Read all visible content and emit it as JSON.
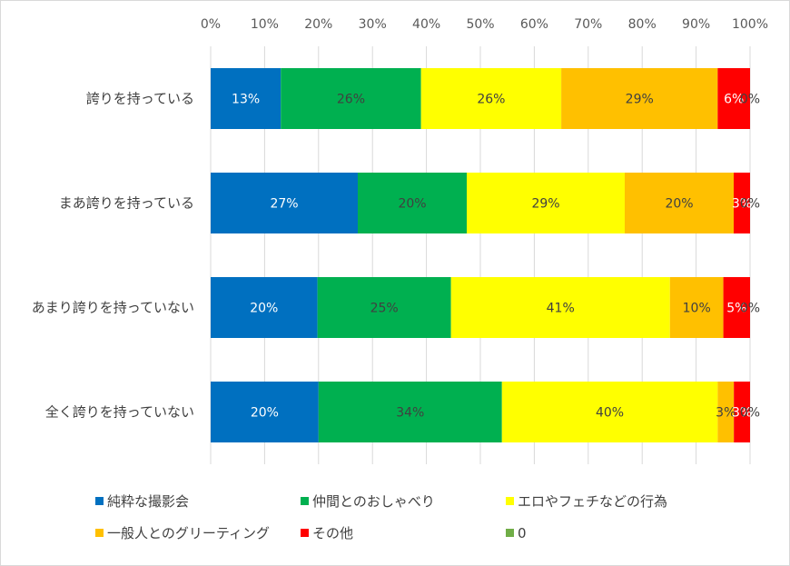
{
  "chart_data": {
    "type": "bar",
    "orientation": "horizontal",
    "stacked": "percent",
    "categories": [
      "誇りを持っている",
      "まあ誇りを持っている",
      "あまり誇りを持っていない",
      "全く誇りを持っていない"
    ],
    "series": [
      {
        "name": "純粋な撮影会",
        "color": "#0070C0",
        "values": [
          13,
          27,
          20,
          20
        ],
        "labels": [
          "13%",
          "27%",
          "20%",
          "20%"
        ],
        "label_color": "#ffffff"
      },
      {
        "name": "仲間とのおしゃべり",
        "color": "#00B050",
        "values": [
          26,
          20,
          25,
          34
        ],
        "labels": [
          "26%",
          "20%",
          "25%",
          "34%"
        ],
        "label_color": "#404040"
      },
      {
        "name": "エロやフェチなどの行為",
        "color": "#FFFF00",
        "values": [
          26,
          29,
          41,
          40
        ],
        "labels": [
          "26%",
          "29%",
          "41%",
          "40%"
        ],
        "label_color": "#404040"
      },
      {
        "name": "一般人とのグリーティング",
        "color": "#FFC000",
        "values": [
          29,
          20,
          10,
          3
        ],
        "labels": [
          "29%",
          "20%",
          "10%",
          "3%"
        ],
        "label_color": "#404040"
      },
      {
        "name": "その他",
        "color": "#FF0000",
        "values": [
          6,
          3,
          5,
          3
        ],
        "labels": [
          "6%",
          "3%",
          "5%",
          "3%"
        ],
        "label_color": "#ffffff"
      },
      {
        "name": "0",
        "color": "#70AD47",
        "values": [
          0,
          0,
          0,
          0
        ],
        "labels": [
          "0%",
          "0%",
          "0%",
          "0%"
        ],
        "label_color": "#404040"
      }
    ],
    "x_ticks": [
      "0%",
      "10%",
      "20%",
      "30%",
      "40%",
      "50%",
      "60%",
      "70%",
      "80%",
      "90%",
      "100%"
    ],
    "xlim": [
      0,
      100
    ],
    "grid": true,
    "legend_position": "bottom"
  }
}
